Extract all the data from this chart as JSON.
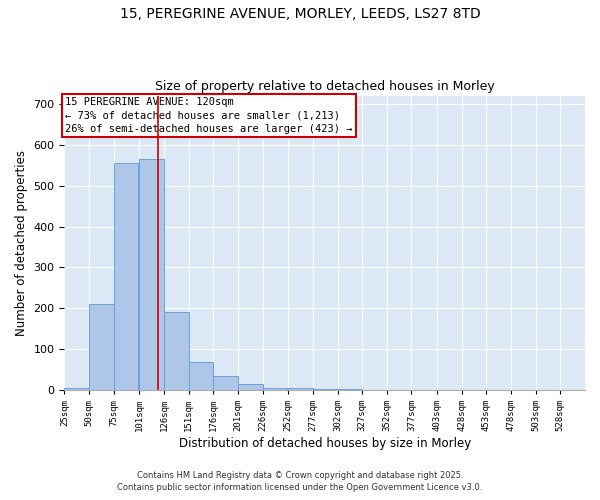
{
  "title_line1": "15, PEREGRINE AVENUE, MORLEY, LEEDS, LS27 8TD",
  "title_line2": "Size of property relative to detached houses in Morley",
  "xlabel": "Distribution of detached houses by size in Morley",
  "ylabel": "Number of detached properties",
  "bin_edges": [
    25,
    50,
    75,
    101,
    126,
    151,
    176,
    201,
    226,
    252,
    277,
    302,
    327,
    352,
    377,
    403,
    428,
    453,
    478,
    503,
    528
  ],
  "bin_width": 25,
  "bar_heights": [
    5,
    210,
    555,
    565,
    190,
    70,
    35,
    15,
    5,
    5,
    3,
    3,
    0,
    0,
    0,
    0,
    0,
    1,
    0,
    0,
    0
  ],
  "bar_color": "#aec6e8",
  "bar_edgecolor": "#5b9bd5",
  "property_size": 120,
  "vline_color": "#cc0000",
  "annotation_box_color": "#cc0000",
  "annotation_text_line1": "15 PEREGRINE AVENUE: 120sqm",
  "annotation_text_line2": "← 73% of detached houses are smaller (1,213)",
  "annotation_text_line3": "26% of semi-detached houses are larger (423) →",
  "annotation_fontsize": 7.5,
  "footnote1": "Contains HM Land Registry data © Crown copyright and database right 2025.",
  "footnote2": "Contains public sector information licensed under the Open Government Licence v3.0.",
  "ylim": [
    0,
    720
  ],
  "background_color": "#dce8f5",
  "title_fontsize": 10,
  "subtitle_fontsize": 9
}
